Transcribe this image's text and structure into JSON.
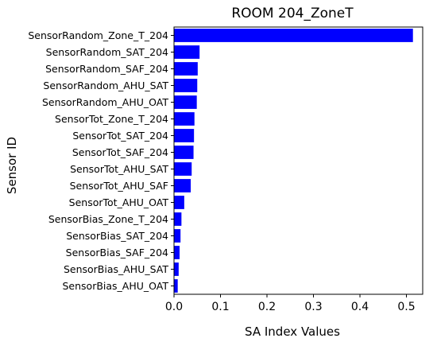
{
  "chart_data": {
    "type": "bar",
    "orientation": "horizontal",
    "title": "ROOM 204_ZoneT",
    "xlabel": "SA Index Values",
    "ylabel": "Sensor ID",
    "xlim": [
      0,
      0.535
    ],
    "xticks": [
      "0.0",
      "0.1",
      "0.2",
      "0.3",
      "0.4",
      "0.5"
    ],
    "xtick_values": [
      0.0,
      0.1,
      0.2,
      0.3,
      0.4,
      0.5
    ],
    "grid": false,
    "bar_color": "#0000ff",
    "categories": [
      "SensorRandom_Zone_T_204",
      "SensorRandom_SAT_204",
      "SensorRandom_SAF_204",
      "SensorRandom_AHU_SAT",
      "SensorRandom_AHU_OAT",
      "SensorTot_Zone_T_204",
      "SensorTot_SAT_204",
      "SensorTot_SAF_204",
      "SensorTot_AHU_SAT",
      "SensorTot_AHU_SAF",
      "SensorTot_AHU_OAT",
      "SensorBias_Zone_T_204",
      "SensorBias_SAT_204",
      "SensorBias_SAF_204",
      "SensorBias_AHU_SAT",
      "SensorBias_AHU_OAT"
    ],
    "values": [
      0.514,
      0.055,
      0.051,
      0.05,
      0.049,
      0.044,
      0.043,
      0.042,
      0.038,
      0.036,
      0.022,
      0.016,
      0.014,
      0.012,
      0.01,
      0.008
    ]
  }
}
